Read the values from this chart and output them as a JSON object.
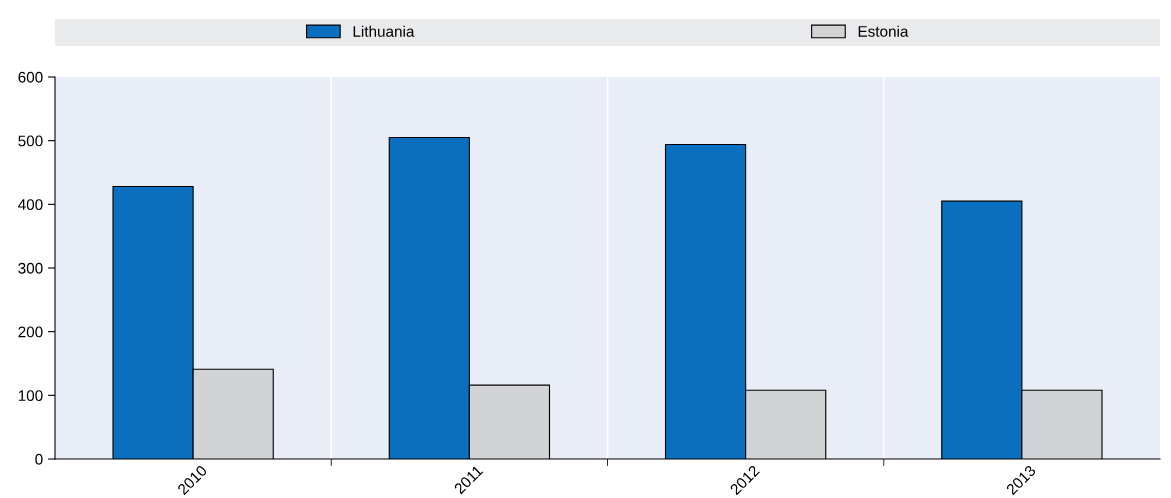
{
  "chart_data": {
    "type": "bar",
    "categories": [
      "2010",
      "2011",
      "2012",
      "2013"
    ],
    "series": [
      {
        "name": "Lithuania",
        "color": "#0a6fbe",
        "values": [
          428,
          505,
          494,
          405
        ]
      },
      {
        "name": "Estonia",
        "color": "#d2d3d5",
        "values": [
          141,
          116,
          108,
          108
        ]
      }
    ],
    "ylim": [
      0,
      600
    ],
    "yticks": [
      0,
      100,
      200,
      300,
      400,
      500,
      600
    ],
    "grid": "x",
    "legend": "top"
  }
}
